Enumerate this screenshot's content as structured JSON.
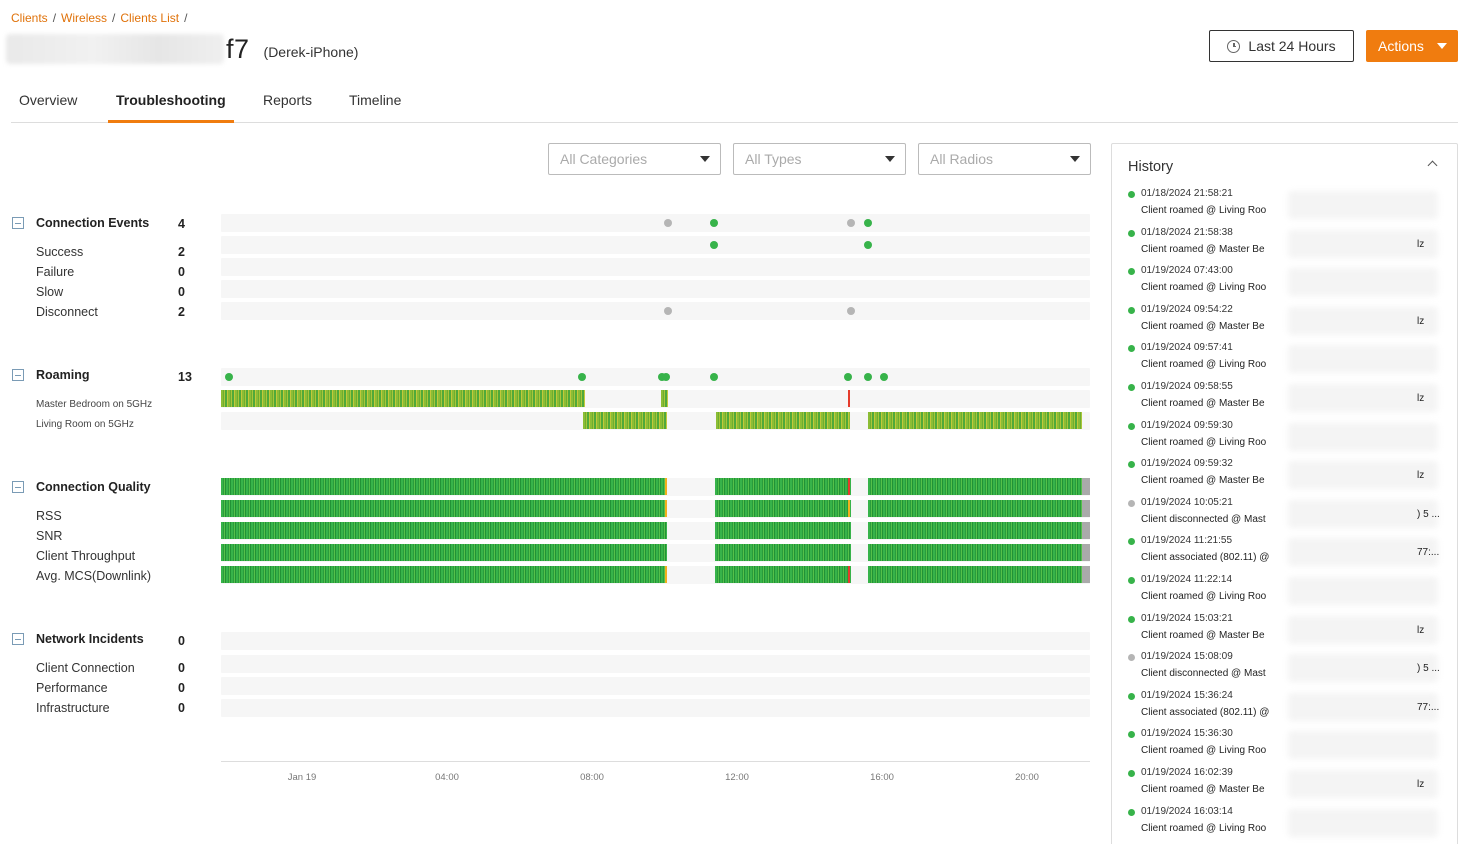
{
  "breadcrumb": [
    {
      "label": "Clients"
    },
    {
      "label": "Wireless"
    },
    {
      "label": "Clients List"
    }
  ],
  "client": {
    "name": "f7",
    "alias": "(Derek-iPhone)"
  },
  "header": {
    "time_range_label": "Last 24 Hours",
    "actions_label": "Actions"
  },
  "tabs": [
    {
      "label": "Overview"
    },
    {
      "label": "Troubleshooting"
    },
    {
      "label": "Reports"
    },
    {
      "label": "Timeline"
    }
  ],
  "filters": [
    {
      "placeholder": "All Categories"
    },
    {
      "placeholder": "All Types"
    },
    {
      "placeholder": "All Radios"
    }
  ],
  "sections": {
    "connection_events": {
      "title": "Connection Events",
      "count": "4",
      "items": [
        {
          "label": "Success",
          "count": "2"
        },
        {
          "label": "Failure",
          "count": "0"
        },
        {
          "label": "Slow",
          "count": "0"
        },
        {
          "label": "Disconnect",
          "count": "2"
        }
      ]
    },
    "roaming": {
      "title": "Roaming",
      "count": "13",
      "items": [
        {
          "label": "Master Bedroom on 5GHz"
        },
        {
          "label": "Living Room on 5GHz"
        }
      ]
    },
    "connection_quality": {
      "title": "Connection Quality",
      "items": [
        {
          "label": "RSS"
        },
        {
          "label": "SNR"
        },
        {
          "label": "Client Throughput"
        },
        {
          "label": "Avg. MCS(Downlink)"
        }
      ]
    },
    "network_incidents": {
      "title": "Network Incidents",
      "count": "0",
      "items": [
        {
          "label": "Client Connection",
          "count": "0"
        },
        {
          "label": "Performance",
          "count": "0"
        },
        {
          "label": "Infrastructure",
          "count": "0"
        }
      ]
    }
  },
  "axis": {
    "ticks": [
      "Jan 19",
      "04:00",
      "08:00",
      "12:00",
      "16:00",
      "20:00"
    ]
  },
  "colors": {
    "accent": "#f07c0f",
    "success": "#37b34a",
    "neutral": "#b5b5b5",
    "warning": "#f2b01e",
    "error": "#e53b2b"
  },
  "history": {
    "title": "History",
    "items": [
      {
        "time": "01/18/2024 21:58:21",
        "text": "Client roamed @ Living Roo",
        "tail": "",
        "status": "success"
      },
      {
        "time": "01/18/2024 21:58:38",
        "text": "Client roamed @ Master Be",
        "tail": "lz",
        "status": "success"
      },
      {
        "time": "01/19/2024 07:43:00",
        "text": "Client roamed @ Living Roo",
        "tail": "",
        "status": "success"
      },
      {
        "time": "01/19/2024 09:54:22",
        "text": "Client roamed @ Master Be",
        "tail": "lz",
        "status": "success"
      },
      {
        "time": "01/19/2024 09:57:41",
        "text": "Client roamed @ Living Roo",
        "tail": "",
        "status": "success"
      },
      {
        "time": "01/19/2024 09:58:55",
        "text": "Client roamed @ Master Be",
        "tail": "lz",
        "status": "success"
      },
      {
        "time": "01/19/2024 09:59:30",
        "text": "Client roamed @ Living Roo",
        "tail": "",
        "status": "success"
      },
      {
        "time": "01/19/2024 09:59:32",
        "text": "Client roamed @ Master Be",
        "tail": "lz",
        "status": "success"
      },
      {
        "time": "01/19/2024 10:05:21",
        "text": "Client disconnected @ Mast",
        "tail": ") 5 ...",
        "status": "neutral"
      },
      {
        "time": "01/19/2024 11:21:55",
        "text": "Client associated (802.11) @",
        "tail": "77:...",
        "status": "success"
      },
      {
        "time": "01/19/2024 11:22:14",
        "text": "Client roamed @ Living Roo",
        "tail": "",
        "status": "success"
      },
      {
        "time": "01/19/2024 15:03:21",
        "text": "Client roamed @ Master Be",
        "tail": "lz",
        "status": "success"
      },
      {
        "time": "01/19/2024 15:08:09",
        "text": "Client disconnected @ Mast",
        "tail": ") 5 ...",
        "status": "neutral"
      },
      {
        "time": "01/19/2024 15:36:24",
        "text": "Client associated (802.11) @",
        "tail": "77:...",
        "status": "success"
      },
      {
        "time": "01/19/2024 15:36:30",
        "text": "Client roamed @ Living Roo",
        "tail": "",
        "status": "success"
      },
      {
        "time": "01/19/2024 16:02:39",
        "text": "Client roamed @ Master Be",
        "tail": "lz",
        "status": "success"
      },
      {
        "time": "01/19/2024 16:03:14",
        "text": "Client roamed @ Living Roo",
        "tail": "",
        "status": "success"
      }
    ]
  }
}
